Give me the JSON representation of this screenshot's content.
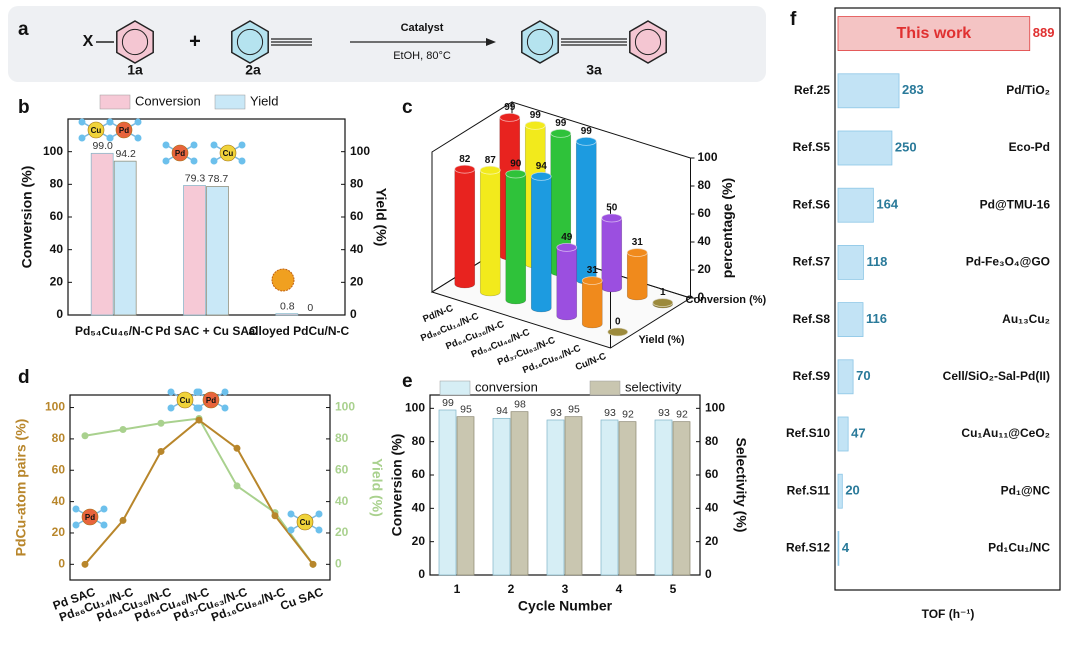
{
  "panels": [
    "a",
    "b",
    "c",
    "d",
    "e",
    "f"
  ],
  "scheme": {
    "reactant_1_group": "X",
    "reactant_1": "1a",
    "plus": "+",
    "reactant_2": "2a",
    "conditions_top": "Catalyst",
    "conditions_bottom": "EtOH, 80°C",
    "product": "3a"
  },
  "icon_labels": [
    "Cu",
    "Pd"
  ],
  "chart_data": [
    {
      "type": "bar",
      "categories": [
        "Pd₅₄Cu₄₆/N-C",
        "Pd SAC + Cu SAC",
        "alloyed PdCu/N-C"
      ],
      "series": [
        {
          "name": "Conversion",
          "color": "#f6c9d6",
          "values": [
            99.0,
            79.3,
            0.8
          ],
          "value_labels": [
            "99.0",
            "79.3",
            "0.8"
          ]
        },
        {
          "name": "Yield",
          "color": "#c9e8f7",
          "values": [
            94.2,
            78.7,
            0
          ],
          "value_labels": [
            "94.2",
            "78.7",
            "0"
          ]
        }
      ],
      "ylabel": "Conversion (%)",
      "y2label": "Yield (%)",
      "ylim": [
        0,
        120
      ],
      "yticks": [
        0,
        20,
        40,
        60,
        80,
        100
      ],
      "y2lim": [
        0,
        120
      ],
      "y2ticks": [
        0,
        20,
        40,
        60,
        80,
        100
      ]
    },
    {
      "type": "bar3d",
      "categories": [
        "Pd/N-C",
        "Pd₈₆Cu₁₄/N-C",
        "Pd₆₄Cu₃₆/N-C",
        "Pd₅₄Cu₄₆/N-C",
        "Pd₃₇Cu₆₃/N-C",
        "Pd₁₆Cu₈₄/N-C",
        "Cu/N-C"
      ],
      "colors": [
        "#e8231f",
        "#f2ea1c",
        "#2fc23a",
        "#1d9be0",
        "#9b4fe0",
        "#f08a1c",
        "#9c8a3c"
      ],
      "series": [
        {
          "name": "Conversion (%)",
          "values": [
            99,
            99,
            99,
            99,
            50,
            31,
            1
          ]
        },
        {
          "name": "Yield (%)",
          "values": [
            82,
            87,
            90,
            94,
            49,
            31,
            0
          ]
        }
      ],
      "zlabel": "percentage (%)",
      "zlim": [
        0,
        100
      ],
      "zticks": [
        0,
        20,
        40,
        60,
        80,
        100
      ]
    },
    {
      "type": "line",
      "categories": [
        "Pd SAC",
        "Pd₈₆Cu₁₄/N-C",
        "Pd₆₄Cu₃₆/N-C",
        "Pd₅₄Cu₄₆/N-C",
        "Pd₃₇Cu₆₃/N-C",
        "Pd₁₆Cu₈₄/N-C",
        "Cu SAC"
      ],
      "series": [
        {
          "color": "#b8862b",
          "values": [
            0,
            28,
            72,
            92,
            74,
            31,
            0
          ]
        },
        {
          "color": "#a9d18e",
          "axis": "y2",
          "values": [
            82,
            86,
            90,
            93,
            50,
            33,
            0
          ]
        }
      ],
      "ylabel": "PdCu-atom pairs (%)",
      "y2label": "Yield (%)",
      "ylim": [
        -10,
        108
      ],
      "yticks": [
        0,
        20,
        40,
        60,
        80,
        100
      ],
      "y2lim": [
        -10,
        108
      ],
      "y2ticks": [
        0,
        20,
        40,
        60,
        80,
        100
      ]
    },
    {
      "type": "bar",
      "categories": [
        "1",
        "2",
        "3",
        "4",
        "5"
      ],
      "xlabel": "Cycle Number",
      "series": [
        {
          "name": "conversion",
          "color": "#d6eef5",
          "values": [
            99,
            94,
            93,
            93,
            93
          ]
        },
        {
          "name": "selectivity",
          "color": "#c9c6b0",
          "values": [
            95,
            98,
            95,
            92,
            92
          ]
        }
      ],
      "ylabel": "Conversion (%)",
      "y2label": "Selectivity (%)",
      "ylim": [
        0,
        108
      ],
      "yticks": [
        0,
        20,
        40,
        60,
        80,
        100
      ],
      "y2lim": [
        0,
        108
      ],
      "y2ticks": [
        0,
        20,
        40,
        60,
        80,
        100
      ]
    },
    {
      "type": "barh",
      "categories": [
        null,
        "Ref.25",
        "Ref.S5",
        "Ref.S6",
        "Ref.S7",
        "Ref.S8",
        "Ref.S9",
        "Ref.S10",
        "Ref.S11",
        "Ref.S12"
      ],
      "labels": [
        "This work",
        "Pd/TiO₂",
        "Eco-Pd",
        "Pd@TMU-16",
        "Pd-Fe₃O₄@GO",
        "Au₁₃Cu₂",
        "Cell/SiO₂-Sal-Pd(II)",
        "Cu₁Au₁₁@CeO₂",
        "Pd₁@NC",
        "Pd₁Cu₁/NC"
      ],
      "values": [
        889,
        283,
        250,
        164,
        118,
        116,
        70,
        47,
        20,
        4
      ],
      "colors": [
        "#f4c4c4",
        "#c2e3f5"
      ],
      "xlabel": "TOF (h⁻¹)",
      "xlim": [
        0,
        1020
      ]
    }
  ]
}
